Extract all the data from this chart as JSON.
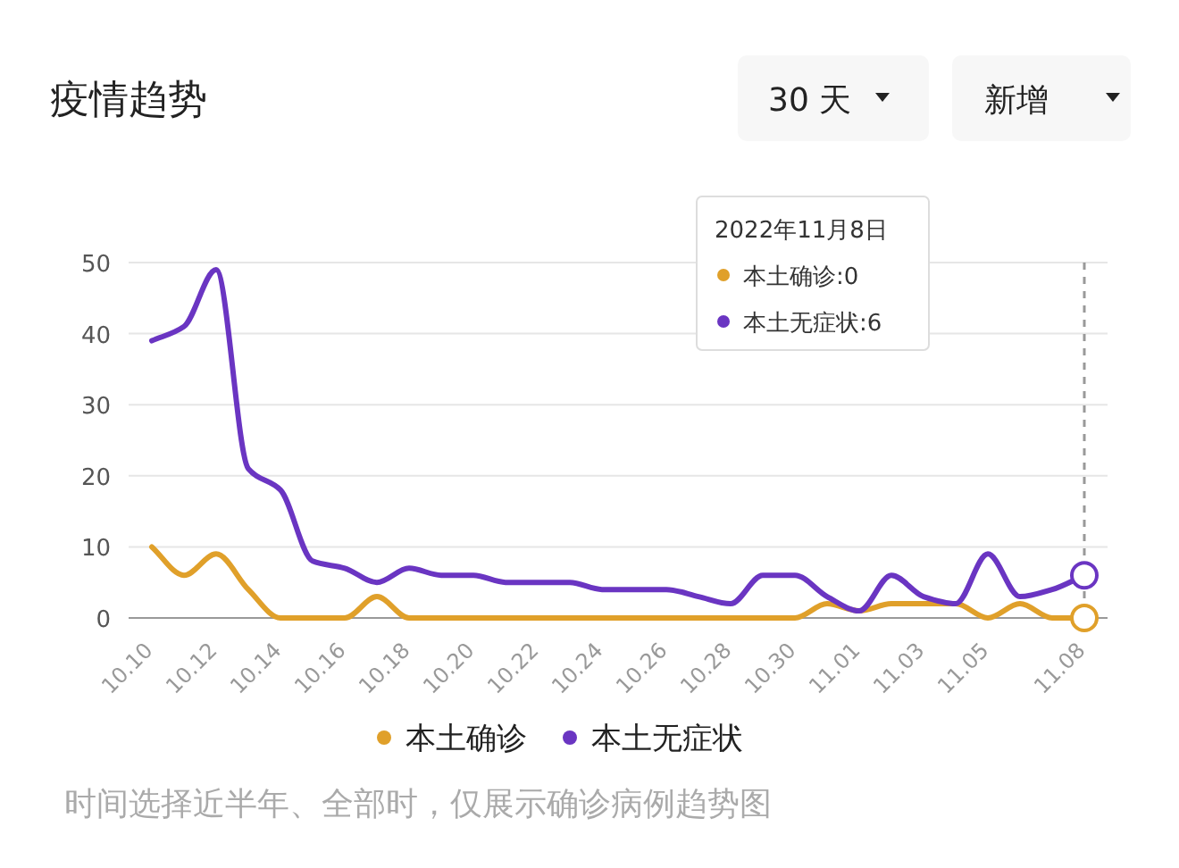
{
  "chart_data": {
    "type": "line",
    "title": "疫情趋势",
    "categories": [
      "10.10",
      null,
      "10.12",
      null,
      "10.14",
      null,
      "10.16",
      null,
      "10.18",
      null,
      "10.20",
      null,
      "10.22",
      null,
      "10.24",
      null,
      "10.26",
      null,
      "10.28",
      null,
      "10.30",
      null,
      "11.01",
      null,
      "11.03",
      null,
      "11.05",
      null,
      null,
      "11.08"
    ],
    "series": [
      {
        "name": "本土确诊",
        "color": "#e0a02a",
        "values": [
          10,
          6,
          9,
          4,
          0,
          0,
          0,
          3,
          0,
          0,
          0,
          0,
          0,
          0,
          0,
          0,
          0,
          0,
          0,
          0,
          0,
          2,
          1,
          2,
          2,
          2,
          0,
          2,
          0,
          0
        ]
      },
      {
        "name": "本土无症状",
        "color": "#6a35c2",
        "values": [
          39,
          41,
          49,
          21,
          18,
          8,
          7,
          5,
          7,
          6,
          6,
          5,
          5,
          5,
          4,
          4,
          4,
          3,
          2,
          6,
          6,
          3,
          1,
          6,
          3,
          2,
          9,
          3,
          4,
          6
        ]
      }
    ],
    "ylim": [
      0,
      50
    ],
    "yticks": [
      0,
      10,
      20,
      30,
      40,
      50
    ],
    "grid": "y",
    "legend": "bottom",
    "marker": "none",
    "line_style": "solid",
    "ref_lines": [
      {
        "axis": "x",
        "value": "11.08",
        "line_style": "dashed",
        "color": "#999999"
      }
    ],
    "annotations": [
      "30 天",
      "新增",
      "2022年11月8日",
      "本土确诊:0",
      "本土无症状:6",
      "时间选择近半年、全部时，仅展示确诊病例趋势图"
    ]
  }
}
